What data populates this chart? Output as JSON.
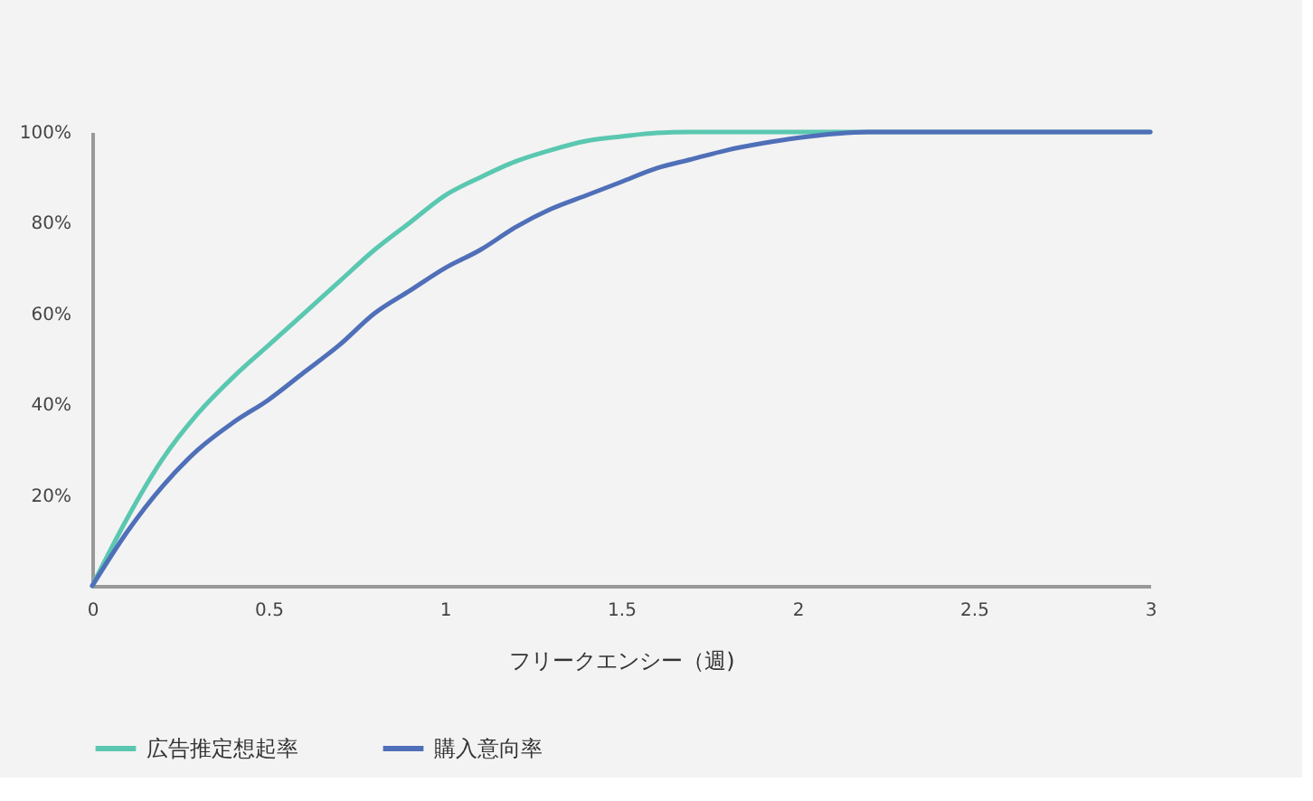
{
  "chart_data": {
    "type": "line",
    "xlabel": "フリークエンシー（週)",
    "x": [
      0,
      0.1,
      0.2,
      0.3,
      0.4,
      0.5,
      0.6,
      0.7,
      0.8,
      0.9,
      1.0,
      1.1,
      1.2,
      1.3,
      1.4,
      1.5,
      1.6,
      1.7,
      1.8,
      1.9,
      2.0,
      2.2,
      2.5,
      3
    ],
    "series": [
      {
        "name": "広告推定想起率",
        "color": "#5ac8b0",
        "values": [
          0,
          15,
          28,
          38,
          46,
          53,
          60,
          67,
          74,
          80,
          86,
          90,
          93.5,
          96,
          98,
          99,
          99.8,
          100,
          100,
          100,
          100,
          100,
          100,
          100
        ]
      },
      {
        "name": "購入意向率",
        "color": "#4f6fb8",
        "values": [
          0,
          12,
          22,
          30,
          36,
          41,
          47,
          53,
          60,
          65,
          70,
          74,
          79,
          83,
          86,
          89,
          92,
          94,
          96,
          97.5,
          98.7,
          100,
          100,
          100
        ]
      }
    ],
    "xlim": [
      0,
      3
    ],
    "xticks": [
      0,
      0.5,
      1,
      1.5,
      2,
      2.5,
      3
    ],
    "ylim": [
      0,
      100
    ],
    "yticks": [
      {
        "value": 0,
        "label": null
      },
      {
        "value": 20,
        "label": "20%"
      },
      {
        "value": 40,
        "label": "40%"
      },
      {
        "value": 60,
        "label": "60%"
      },
      {
        "value": 80,
        "label": "80%"
      },
      {
        "value": 100,
        "label": "100%"
      }
    ],
    "grid": false,
    "legend": "bottom",
    "marker": "none",
    "line_style": "solid"
  }
}
